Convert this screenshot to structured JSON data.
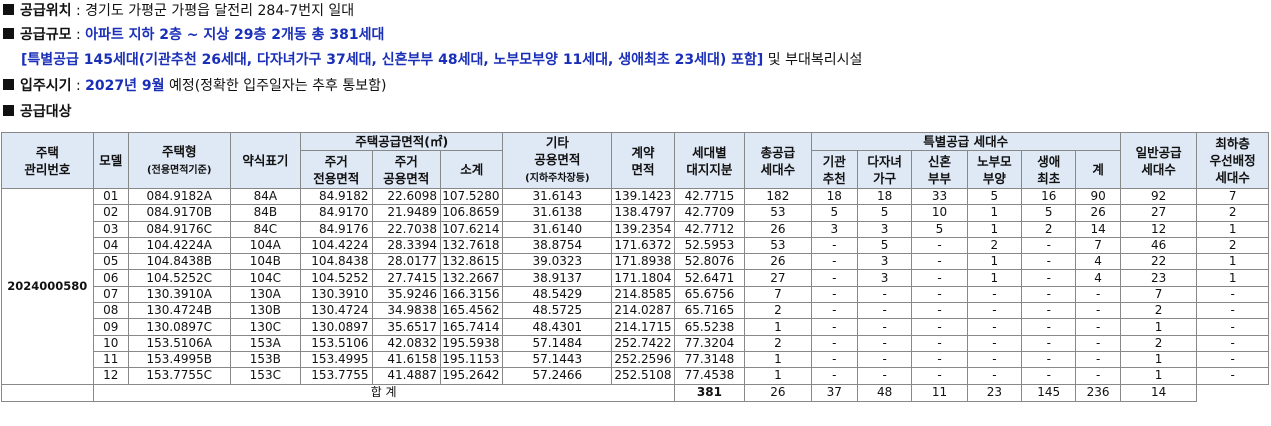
{
  "info": {
    "location": {
      "label": "공급위치",
      "sep": " : ",
      "text": "경기도 가평군 가평읍 달전리 284-7번지 일대"
    },
    "scale": {
      "label": "공급규모",
      "sep": " : ",
      "text": "아파트 지하 2층 ~ 지상 29층 2개동 총 381세대"
    },
    "scale_detail": {
      "text": "[특별공급 145세대(기관추천 26세대, 다자녀가구 37세대, 신혼부부 48세대, 노부모부양 11세대, 생애최초 23세대) 포함]",
      "suffix": " 및 부대복리시설"
    },
    "move_in": {
      "label": "입주시기",
      "sep": " : ",
      "value": "2027년 9월",
      "suffix": " 예정(정확한 입주일자는 추후 통보함)"
    },
    "target": {
      "label": "공급대상"
    }
  },
  "table": {
    "headers": {
      "housing_mgmt_no": [
        "주택",
        "관리번호"
      ],
      "model": "모델",
      "housing_type": "주택형",
      "housing_type_sub": "(전용면적기준)",
      "short_label": "약식표기",
      "supply_area": "주택공급면적(㎡)",
      "exclusive_area": [
        "주거",
        "전용면적"
      ],
      "common_area": [
        "주거",
        "공용면적"
      ],
      "subtotal": "소계",
      "other_common": [
        "기타",
        "공용면적"
      ],
      "other_common_sub": "(지하주차장등)",
      "contract_area": [
        "계약",
        "면적"
      ],
      "land_share": [
        "세대별",
        "대지지분"
      ],
      "total_supply": [
        "총공급",
        "세대수"
      ],
      "special_supply": "특별공급 세대수",
      "institution": [
        "기관",
        "추천"
      ],
      "multi_child": [
        "다자녀",
        "가구"
      ],
      "newlywed": [
        "신혼",
        "부부"
      ],
      "elderly": [
        "노부모",
        "부양"
      ],
      "first_time": [
        "생애",
        "최초"
      ],
      "special_total": "계",
      "general_supply": [
        "일반공급",
        "세대수"
      ],
      "lowest_floor": [
        "최하층",
        "우선배정",
        "세대수"
      ]
    },
    "housing_mgmt_no": "2024000580",
    "rows": [
      [
        "01",
        "084.9182A",
        "84A",
        "84.9182",
        "22.6098",
        "107.5280",
        "31.6143",
        "139.1423",
        "42.7715",
        "182",
        "18",
        "18",
        "33",
        "5",
        "16",
        "90",
        "92",
        "7"
      ],
      [
        "02",
        "084.9170B",
        "84B",
        "84.9170",
        "21.9489",
        "106.8659",
        "31.6138",
        "138.4797",
        "42.7709",
        "53",
        "5",
        "5",
        "10",
        "1",
        "5",
        "26",
        "27",
        "2"
      ],
      [
        "03",
        "084.9176C",
        "84C",
        "84.9176",
        "22.7038",
        "107.6214",
        "31.6140",
        "139.2354",
        "42.7712",
        "26",
        "3",
        "3",
        "5",
        "1",
        "2",
        "14",
        "12",
        "1"
      ],
      [
        "04",
        "104.4224A",
        "104A",
        "104.4224",
        "28.3394",
        "132.7618",
        "38.8754",
        "171.6372",
        "52.5953",
        "53",
        "-",
        "5",
        "-",
        "2",
        "-",
        "7",
        "46",
        "2"
      ],
      [
        "05",
        "104.8438B",
        "104B",
        "104.8438",
        "28.0177",
        "132.8615",
        "39.0323",
        "171.8938",
        "52.8076",
        "26",
        "-",
        "3",
        "-",
        "1",
        "-",
        "4",
        "22",
        "1"
      ],
      [
        "06",
        "104.5252C",
        "104C",
        "104.5252",
        "27.7415",
        "132.2667",
        "38.9137",
        "171.1804",
        "52.6471",
        "27",
        "-",
        "3",
        "-",
        "1",
        "-",
        "4",
        "23",
        "1"
      ],
      [
        "07",
        "130.3910A",
        "130A",
        "130.3910",
        "35.9246",
        "166.3156",
        "48.5429",
        "214.8585",
        "65.6756",
        "7",
        "-",
        "-",
        "-",
        "-",
        "-",
        "-",
        "7",
        "-"
      ],
      [
        "08",
        "130.4724B",
        "130B",
        "130.4724",
        "34.9838",
        "165.4562",
        "48.5725",
        "214.0287",
        "65.7165",
        "2",
        "-",
        "-",
        "-",
        "-",
        "-",
        "-",
        "2",
        "-"
      ],
      [
        "09",
        "130.0897C",
        "130C",
        "130.0897",
        "35.6517",
        "165.7414",
        "48.4301",
        "214.1715",
        "65.5238",
        "1",
        "-",
        "-",
        "-",
        "-",
        "-",
        "-",
        "1",
        "-"
      ],
      [
        "10",
        "153.5106A",
        "153A",
        "153.5106",
        "42.0832",
        "195.5938",
        "57.1484",
        "252.7422",
        "77.3204",
        "2",
        "-",
        "-",
        "-",
        "-",
        "-",
        "-",
        "2",
        "-"
      ],
      [
        "11",
        "153.4995B",
        "153B",
        "153.4995",
        "41.6158",
        "195.1153",
        "57.1443",
        "252.2596",
        "77.3148",
        "1",
        "-",
        "-",
        "-",
        "-",
        "-",
        "-",
        "1",
        "-"
      ],
      [
        "12",
        "153.7755C",
        "153C",
        "153.7755",
        "41.4887",
        "195.2642",
        "57.2466",
        "252.5108",
        "77.4538",
        "1",
        "-",
        "-",
        "-",
        "-",
        "-",
        "-",
        "1",
        "-"
      ]
    ],
    "total": {
      "label": "합  계",
      "values": [
        "381",
        "26",
        "37",
        "48",
        "11",
        "23",
        "145",
        "236",
        "14"
      ]
    }
  },
  "colors": {
    "header_bg": "#dfe8f5",
    "accent_blue": "#1a2fb8",
    "border": "#888888"
  }
}
